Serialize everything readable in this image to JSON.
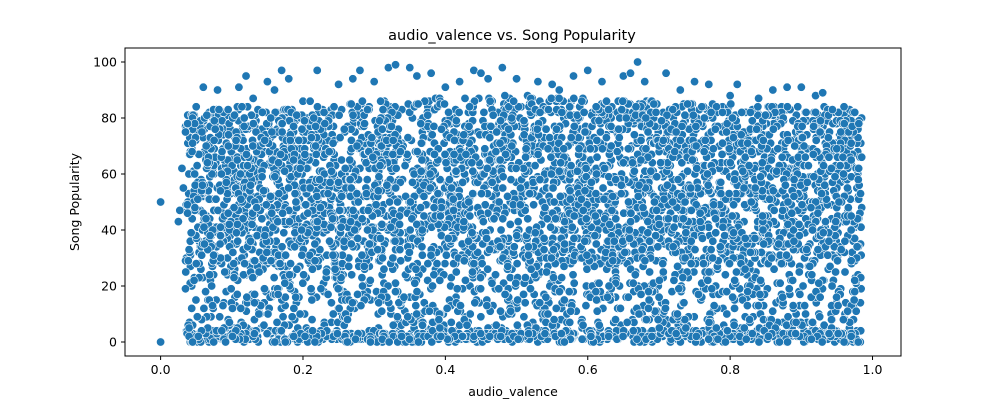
{
  "chart_data": {
    "type": "scatter",
    "title": "audio_valence vs. Song Popularity",
    "xlabel": "audio_valence",
    "ylabel": "Song Popularity",
    "xlim": [
      -0.05,
      1.04
    ],
    "ylim": [
      -5,
      105
    ],
    "xticks": [
      0.0,
      0.2,
      0.4,
      0.6,
      0.8,
      1.0
    ],
    "xtick_labels": [
      "0.0",
      "0.2",
      "0.4",
      "0.6",
      "0.8",
      "1.0"
    ],
    "yticks": [
      0,
      20,
      40,
      60,
      80,
      100
    ],
    "ytick_labels": [
      "0",
      "20",
      "40",
      "60",
      "80",
      "100"
    ],
    "grid": false,
    "legend": "none",
    "color": "#1f77b4",
    "series": [
      {
        "points": [
          [
            0.0,
            50
          ],
          [
            0.0,
            0
          ],
          [
            0.025,
            43
          ],
          [
            0.027,
            47
          ],
          [
            0.03,
            62
          ],
          [
            0.032,
            55
          ],
          [
            0.035,
            19
          ],
          [
            0.035,
            75
          ],
          [
            0.038,
            78
          ],
          [
            0.04,
            33
          ],
          [
            0.04,
            5
          ],
          [
            0.04,
            2
          ],
          [
            0.045,
            0
          ],
          [
            0.047,
            22
          ],
          [
            0.05,
            84
          ],
          [
            0.06,
            91
          ],
          [
            0.065,
            81
          ],
          [
            0.08,
            90
          ],
          [
            0.11,
            91
          ],
          [
            0.12,
            95
          ],
          [
            0.13,
            87
          ],
          [
            0.15,
            93
          ],
          [
            0.16,
            90
          ],
          [
            0.17,
            97
          ],
          [
            0.18,
            94
          ],
          [
            0.2,
            86
          ],
          [
            0.21,
            86
          ],
          [
            0.22,
            97
          ],
          [
            0.25,
            92
          ],
          [
            0.27,
            94
          ],
          [
            0.28,
            97
          ],
          [
            0.3,
            93
          ],
          [
            0.32,
            98
          ],
          [
            0.33,
            99
          ],
          [
            0.35,
            98
          ],
          [
            0.36,
            95
          ],
          [
            0.38,
            96
          ],
          [
            0.4,
            91
          ],
          [
            0.42,
            93
          ],
          [
            0.44,
            97
          ],
          [
            0.45,
            96
          ],
          [
            0.46,
            94
          ],
          [
            0.48,
            98
          ],
          [
            0.5,
            94
          ],
          [
            0.53,
            93
          ],
          [
            0.55,
            92
          ],
          [
            0.56,
            90
          ],
          [
            0.58,
            95
          ],
          [
            0.6,
            97
          ],
          [
            0.62,
            93
          ],
          [
            0.65,
            95
          ],
          [
            0.66,
            96
          ],
          [
            0.67,
            100
          ],
          [
            0.68,
            93
          ],
          [
            0.71,
            96
          ],
          [
            0.73,
            90
          ],
          [
            0.75,
            93
          ],
          [
            0.77,
            92
          ],
          [
            0.8,
            88
          ],
          [
            0.81,
            92
          ],
          [
            0.84,
            87
          ],
          [
            0.86,
            90
          ],
          [
            0.88,
            91
          ],
          [
            0.9,
            91
          ],
          [
            0.92,
            88
          ],
          [
            0.93,
            89
          ],
          [
            0.96,
            84
          ],
          [
            0.975,
            82
          ],
          [
            0.97,
            65
          ],
          [
            0.98,
            58
          ],
          [
            0.975,
            18
          ],
          [
            0.98,
            0
          ],
          [
            0.97,
            2
          ],
          [
            0.96,
            0
          ],
          [
            0.97,
            40
          ],
          [
            0.97,
            45
          ],
          [
            0.975,
            22
          ],
          [
            0.97,
            71
          ],
          [
            0.965,
            11
          ],
          [
            0.97,
            29
          ]
        ]
      }
    ]
  }
}
